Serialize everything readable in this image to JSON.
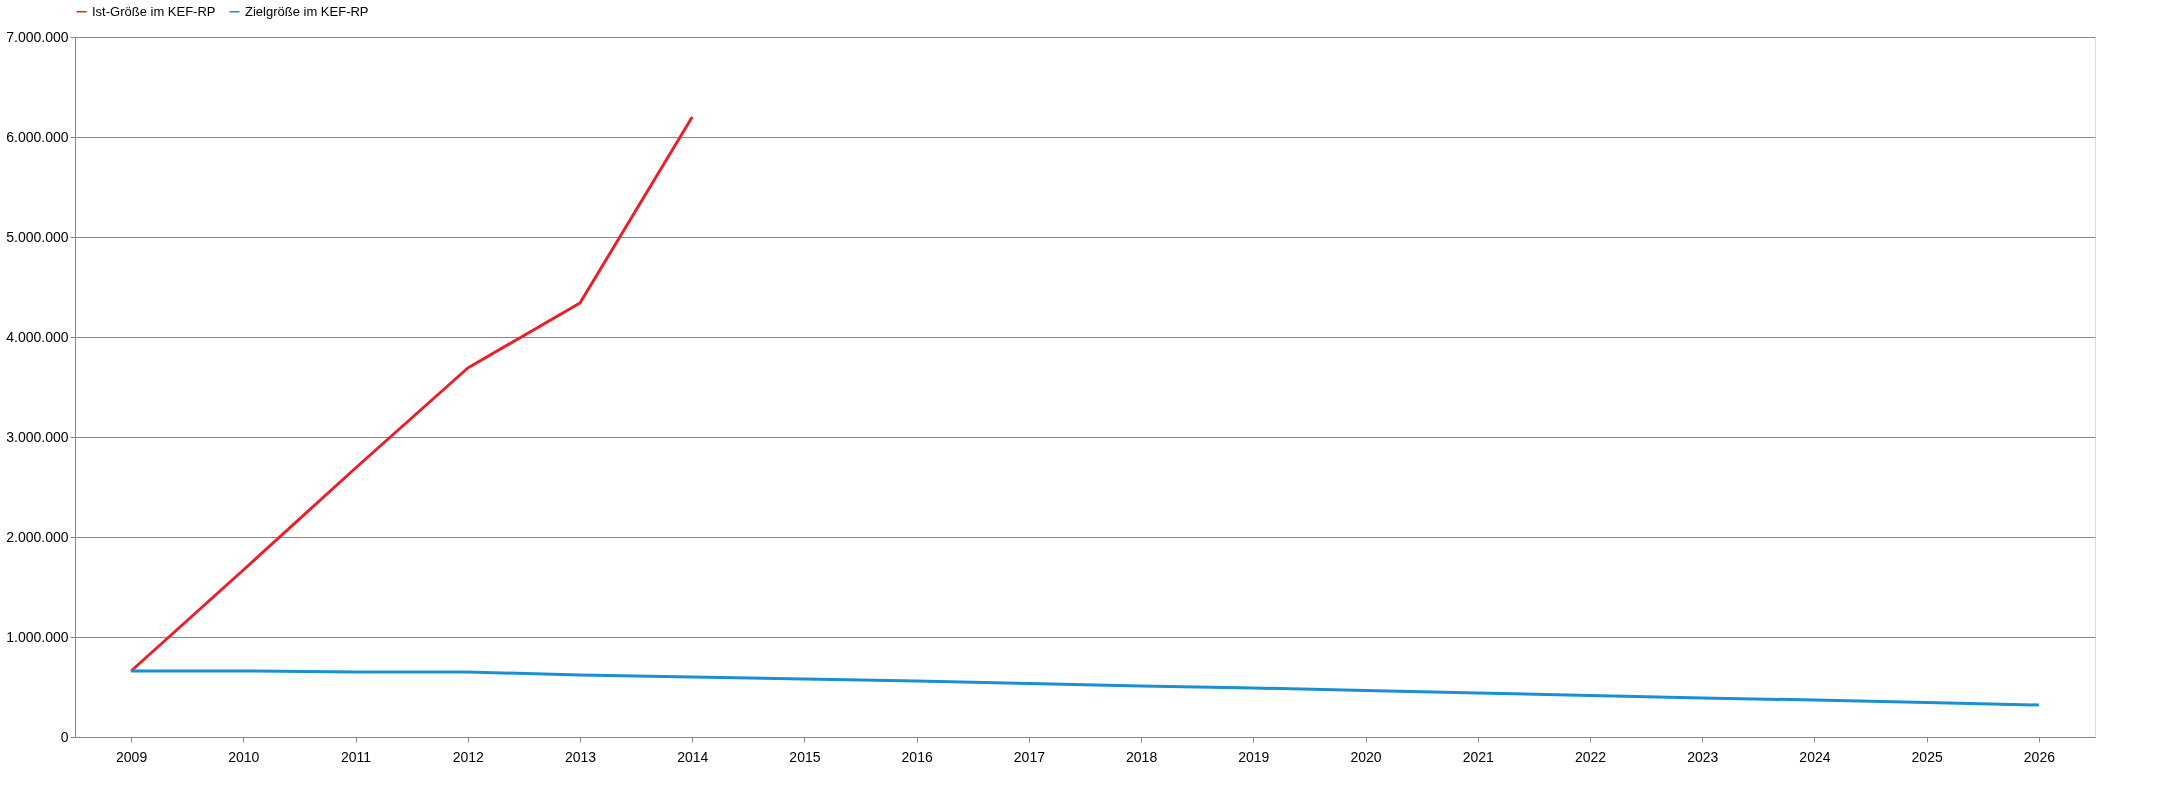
{
  "chart_data": {
    "type": "line",
    "categories": [
      "2009",
      "2010",
      "2011",
      "2012",
      "2013",
      "2014",
      "2015",
      "2016",
      "2017",
      "2018",
      "2019",
      "2020",
      "2021",
      "2022",
      "2023",
      "2024",
      "2025",
      "2026"
    ],
    "series": [
      {
        "name": "Ist-Größe im KEF-RP",
        "color": "#e8202a",
        "values": [
          660000,
          1670000,
          2690000,
          3690000,
          4340000,
          6200000,
          null,
          null,
          null,
          null,
          null,
          null,
          null,
          null,
          null,
          null,
          null,
          null
        ]
      },
      {
        "name": "Zielgröße im KEF-RP",
        "color": "#1b8fd4",
        "values": [
          660000,
          660000,
          650000,
          650000,
          620000,
          600000,
          580000,
          560000,
          535000,
          510000,
          490000,
          465000,
          440000,
          415000,
          390000,
          370000,
          345000,
          320000
        ]
      }
    ],
    "ylim": [
      0,
      7000000
    ],
    "yticks": [
      {
        "value": 0,
        "label": "0"
      },
      {
        "value": 1000000,
        "label": "1.000.000"
      },
      {
        "value": 2000000,
        "label": "2.000.000"
      },
      {
        "value": 3000000,
        "label": "3.000.000"
      },
      {
        "value": 4000000,
        "label": "4.000.000"
      },
      {
        "value": 5000000,
        "label": "5.000.000"
      },
      {
        "value": 6000000,
        "label": "6.000.000"
      },
      {
        "value": 7000000,
        "label": "7.000.000"
      }
    ],
    "grid": "y",
    "legend": "top",
    "line_style": "solid",
    "marker": "none"
  }
}
